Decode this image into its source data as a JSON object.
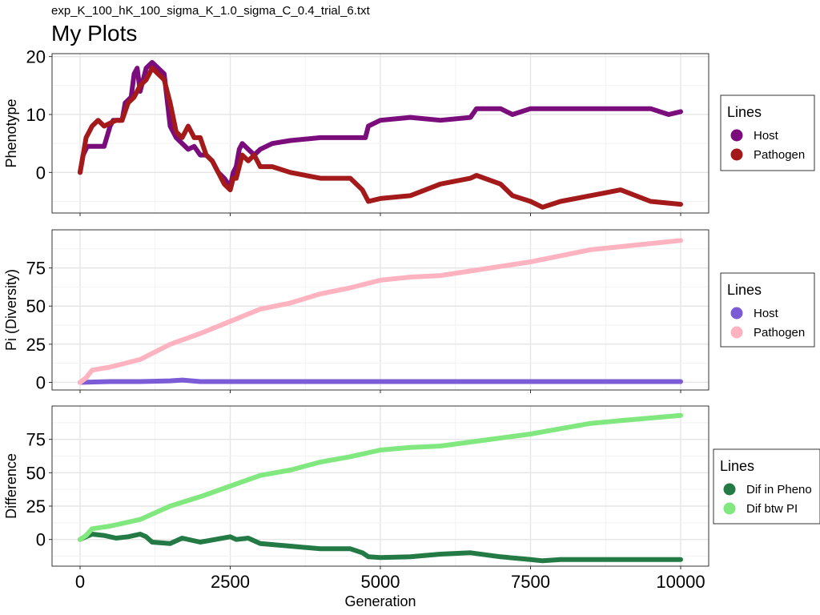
{
  "file_title": "exp_K_100_hK_100_sigma_K_1.0_sigma_C_0.4_trial_6.txt",
  "main_title": "My Plots",
  "chart_data": [
    {
      "type": "line",
      "ylabel": "Phenotype",
      "xlim": [
        0,
        10000
      ],
      "ylim": [
        -7,
        20.5
      ],
      "yticks": [
        0,
        10,
        20
      ],
      "grid": true,
      "legend": {
        "title": "Lines",
        "placement": "right"
      },
      "series": [
        {
          "name": "Host",
          "color": "#7B0C7B",
          "points": [
            [
              0,
              0
            ],
            [
              50,
              3
            ],
            [
              120,
              4.5
            ],
            [
              400,
              4.5
            ],
            [
              500,
              8
            ],
            [
              550,
              9
            ],
            [
              700,
              9
            ],
            [
              750,
              12
            ],
            [
              850,
              13
            ],
            [
              900,
              17
            ],
            [
              950,
              18
            ],
            [
              1000,
              14
            ],
            [
              1050,
              16
            ],
            [
              1100,
              18
            ],
            [
              1200,
              19
            ],
            [
              1300,
              18
            ],
            [
              1400,
              17
            ],
            [
              1500,
              8
            ],
            [
              1600,
              6
            ],
            [
              1700,
              5
            ],
            [
              1800,
              4
            ],
            [
              1900,
              4.5
            ],
            [
              2000,
              3
            ],
            [
              2100,
              3
            ],
            [
              2200,
              2
            ],
            [
              2300,
              0
            ],
            [
              2400,
              -1
            ],
            [
              2500,
              -2.5
            ],
            [
              2550,
              0
            ],
            [
              2600,
              1
            ],
            [
              2650,
              4
            ],
            [
              2700,
              5
            ],
            [
              2800,
              4
            ],
            [
              2900,
              3
            ],
            [
              3000,
              4
            ],
            [
              3200,
              5
            ],
            [
              3500,
              5.5
            ],
            [
              4000,
              6
            ],
            [
              4500,
              6
            ],
            [
              4750,
              6
            ],
            [
              4800,
              8
            ],
            [
              4900,
              8.5
            ],
            [
              5000,
              9
            ],
            [
              5500,
              9.5
            ],
            [
              6000,
              9
            ],
            [
              6500,
              9.5
            ],
            [
              6600,
              11
            ],
            [
              7000,
              11
            ],
            [
              7200,
              10
            ],
            [
              7500,
              11
            ],
            [
              8000,
              11
            ],
            [
              9000,
              11
            ],
            [
              9500,
              11
            ],
            [
              9800,
              10
            ],
            [
              10000,
              10.5
            ]
          ]
        },
        {
          "name": "Pathogen",
          "color": "#A41919",
          "points": [
            [
              0,
              0
            ],
            [
              50,
              3
            ],
            [
              100,
              6
            ],
            [
              150,
              7
            ],
            [
              200,
              8
            ],
            [
              300,
              9
            ],
            [
              400,
              8
            ],
            [
              500,
              8.5
            ],
            [
              600,
              9
            ],
            [
              700,
              9
            ],
            [
              800,
              12
            ],
            [
              900,
              13
            ],
            [
              1000,
              15
            ],
            [
              1100,
              16
            ],
            [
              1200,
              18
            ],
            [
              1300,
              17
            ],
            [
              1400,
              16
            ],
            [
              1500,
              12
            ],
            [
              1600,
              7
            ],
            [
              1700,
              6
            ],
            [
              1800,
              8
            ],
            [
              1900,
              6
            ],
            [
              2000,
              6
            ],
            [
              2100,
              3
            ],
            [
              2200,
              2
            ],
            [
              2300,
              0
            ],
            [
              2400,
              -2
            ],
            [
              2500,
              -3
            ],
            [
              2550,
              -1
            ],
            [
              2600,
              -1
            ],
            [
              2700,
              3
            ],
            [
              2800,
              2
            ],
            [
              2900,
              3
            ],
            [
              3000,
              1
            ],
            [
              3200,
              1
            ],
            [
              3500,
              0
            ],
            [
              4000,
              -1
            ],
            [
              4500,
              -1
            ],
            [
              4700,
              -3
            ],
            [
              4800,
              -5
            ],
            [
              5000,
              -4.5
            ],
            [
              5500,
              -4
            ],
            [
              6000,
              -2
            ],
            [
              6500,
              -1
            ],
            [
              6600,
              -0.5
            ],
            [
              7000,
              -2
            ],
            [
              7200,
              -4
            ],
            [
              7500,
              -5
            ],
            [
              7700,
              -6
            ],
            [
              8000,
              -5
            ],
            [
              8500,
              -4
            ],
            [
              9000,
              -3
            ],
            [
              9500,
              -5
            ],
            [
              10000,
              -5.5
            ]
          ]
        }
      ]
    },
    {
      "type": "line",
      "ylabel": "Pi (Diversity)",
      "xlim": [
        0,
        10000
      ],
      "ylim": [
        -5,
        100
      ],
      "yticks": [
        0,
        25,
        50,
        75
      ],
      "grid": true,
      "legend": {
        "title": "Lines",
        "placement": "right"
      },
      "series": [
        {
          "name": "Host",
          "color": "#7B5BD6",
          "points": [
            [
              0,
              0
            ],
            [
              500,
              0.5
            ],
            [
              1000,
              0.5
            ],
            [
              1500,
              1
            ],
            [
              1700,
              1.5
            ],
            [
              2000,
              0.5
            ],
            [
              3000,
              0.5
            ],
            [
              5000,
              0.5
            ],
            [
              7000,
              0.5
            ],
            [
              10000,
              0.5
            ]
          ]
        },
        {
          "name": "Pathogen",
          "color": "#FFB3C1",
          "points": [
            [
              0,
              0
            ],
            [
              100,
              3
            ],
            [
              200,
              8
            ],
            [
              500,
              10
            ],
            [
              1000,
              15
            ],
            [
              1500,
              25
            ],
            [
              2000,
              32
            ],
            [
              2500,
              40
            ],
            [
              3000,
              48
            ],
            [
              3500,
              52
            ],
            [
              4000,
              58
            ],
            [
              4500,
              62
            ],
            [
              5000,
              67
            ],
            [
              5500,
              69
            ],
            [
              6000,
              70
            ],
            [
              6500,
              73
            ],
            [
              7000,
              76
            ],
            [
              7500,
              79
            ],
            [
              8000,
              83
            ],
            [
              8500,
              87
            ],
            [
              9000,
              89
            ],
            [
              9500,
              91
            ],
            [
              10000,
              93
            ]
          ]
        }
      ]
    },
    {
      "type": "line",
      "ylabel": "Difference",
      "xlabel": "Generation",
      "xlim": [
        0,
        10000
      ],
      "xticks": [
        0,
        2500,
        5000,
        7500,
        10000
      ],
      "ylim": [
        -20,
        100
      ],
      "yticks": [
        0,
        25,
        50,
        75
      ],
      "grid": true,
      "legend": {
        "title": "Lines",
        "placement": "right"
      },
      "series": [
        {
          "name": "Dif in Pheno",
          "color": "#237A45",
          "points": [
            [
              0,
              0
            ],
            [
              100,
              2
            ],
            [
              200,
              4
            ],
            [
              400,
              3
            ],
            [
              600,
              1
            ],
            [
              800,
              2
            ],
            [
              1000,
              4
            ],
            [
              1100,
              2
            ],
            [
              1200,
              -2
            ],
            [
              1500,
              -3
            ],
            [
              1700,
              1
            ],
            [
              2000,
              -2
            ],
            [
              2500,
              2
            ],
            [
              2600,
              0
            ],
            [
              2800,
              1
            ],
            [
              3000,
              -3
            ],
            [
              3500,
              -5
            ],
            [
              4000,
              -7
            ],
            [
              4500,
              -7
            ],
            [
              4700,
              -10
            ],
            [
              4800,
              -13
            ],
            [
              5000,
              -13.5
            ],
            [
              5500,
              -13
            ],
            [
              6000,
              -11
            ],
            [
              6500,
              -10
            ],
            [
              7000,
              -13
            ],
            [
              7500,
              -15
            ],
            [
              7700,
              -16
            ],
            [
              8000,
              -15
            ],
            [
              8500,
              -15
            ],
            [
              9000,
              -15
            ],
            [
              9500,
              -15
            ],
            [
              10000,
              -15
            ]
          ]
        },
        {
          "name": "Dif btw PI",
          "color": "#80E87F",
          "points": [
            [
              0,
              0
            ],
            [
              100,
              3
            ],
            [
              200,
              8
            ],
            [
              500,
              10
            ],
            [
              1000,
              15
            ],
            [
              1500,
              25
            ],
            [
              2000,
              32
            ],
            [
              2500,
              40
            ],
            [
              3000,
              48
            ],
            [
              3500,
              52
            ],
            [
              4000,
              58
            ],
            [
              4500,
              62
            ],
            [
              5000,
              67
            ],
            [
              5500,
              69
            ],
            [
              6000,
              70
            ],
            [
              6500,
              73
            ],
            [
              7000,
              76
            ],
            [
              7500,
              79
            ],
            [
              8000,
              83
            ],
            [
              8500,
              87
            ],
            [
              9000,
              89
            ],
            [
              9500,
              91
            ],
            [
              10000,
              93
            ]
          ]
        }
      ]
    }
  ]
}
